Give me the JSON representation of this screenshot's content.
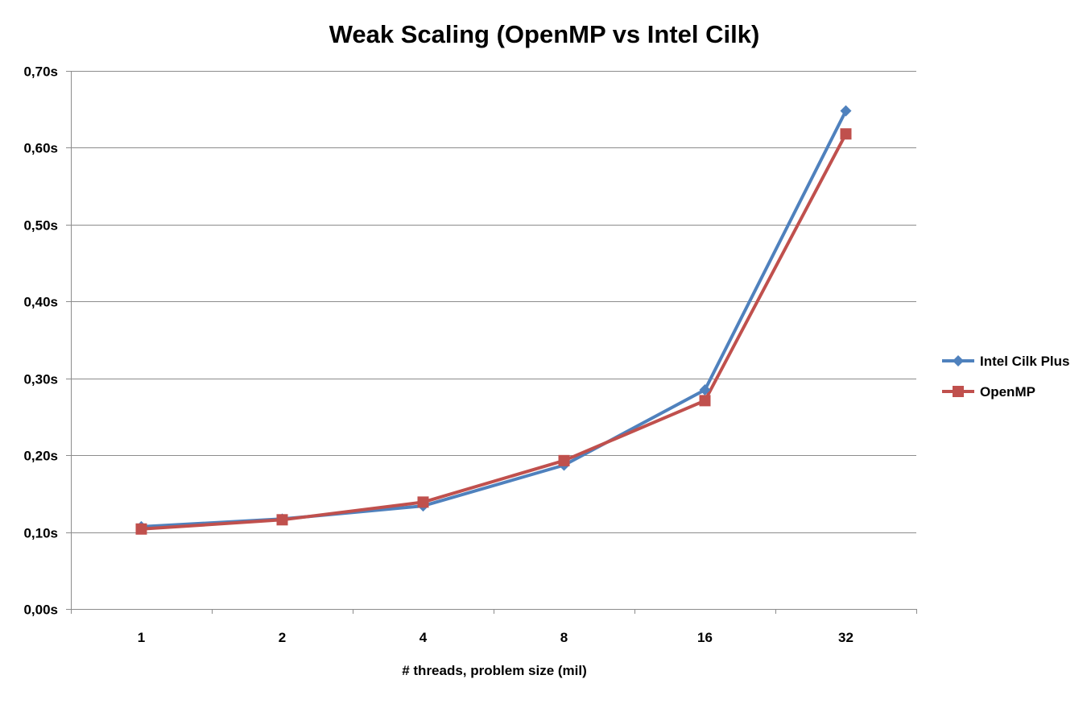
{
  "chart_data": {
    "type": "line",
    "title": "Weak Scaling (OpenMP vs Intel Cilk)",
    "xlabel": "# threads, problem size (mil)",
    "ylabel": "",
    "categories": [
      "1",
      "2",
      "4",
      "8",
      "16",
      "32"
    ],
    "y_ticks": [
      "0,00s",
      "0,10s",
      "0,20s",
      "0,30s",
      "0,40s",
      "0,50s",
      "0,60s",
      "0,70s"
    ],
    "ylim": [
      0,
      0.7
    ],
    "grid": true,
    "legend_position": "right",
    "series": [
      {
        "name": "Intel Cilk Plus",
        "color": "#4F81BD",
        "marker": "diamond",
        "values": [
          0.107,
          0.117,
          0.134,
          0.187,
          0.285,
          0.648
        ]
      },
      {
        "name": "OpenMP",
        "color": "#C0504D",
        "marker": "square",
        "values": [
          0.104,
          0.116,
          0.139,
          0.193,
          0.271,
          0.618
        ]
      }
    ]
  }
}
